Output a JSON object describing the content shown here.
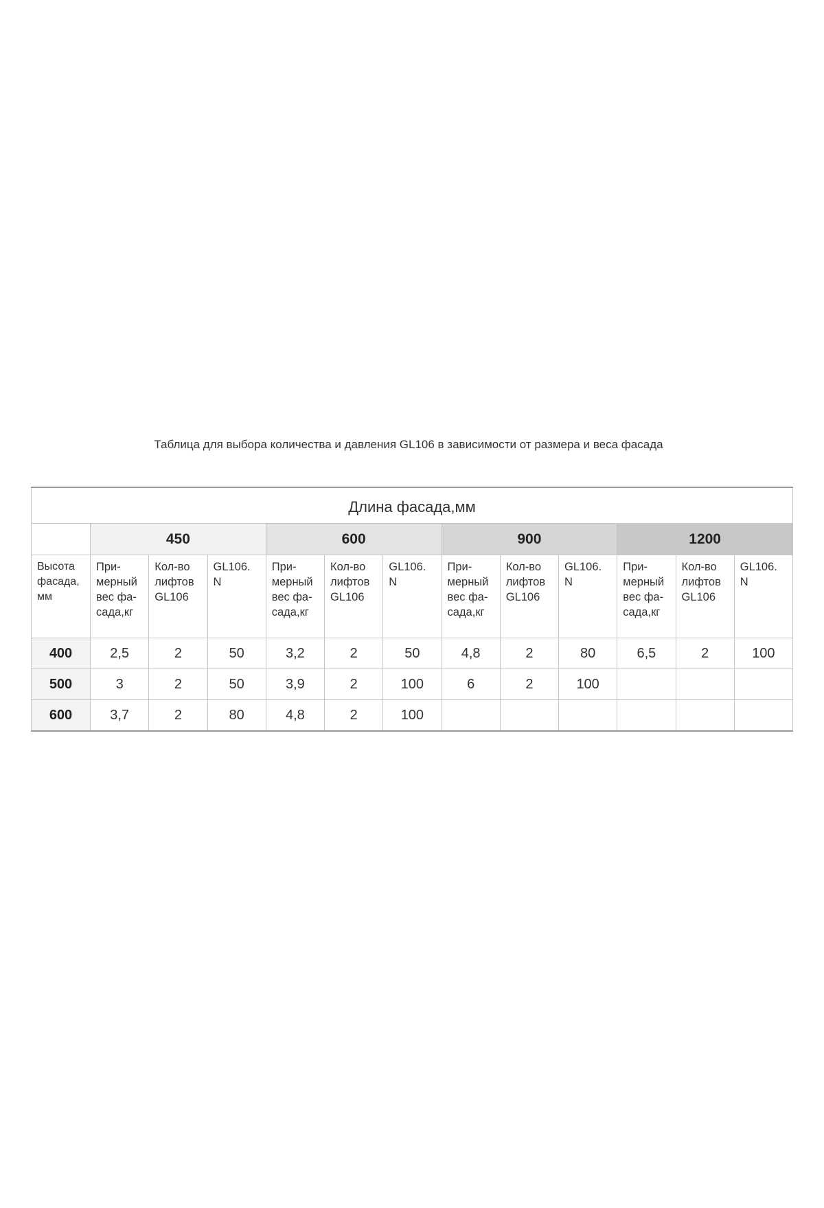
{
  "caption": "Таблица для выбора количества и давления GL106 в зависимости от размера и веса фасада",
  "table": {
    "title": "Длина фасада,мм",
    "groups": [
      "450",
      "600",
      "900",
      "1200"
    ],
    "group_colors": [
      "#f2f2f2",
      "#e3e3e3",
      "#d6d6d6",
      "#c8c8c8"
    ],
    "row_header_label": "Высота\nфасада,\nмм",
    "sub_headers": [
      "При-\nмерный\nвес фа-\nсада,кг",
      "Кол-во\nлифтов\nGL106",
      "GL106.\nN"
    ],
    "rows": [
      {
        "height": "400",
        "cells": [
          "2,5",
          "2",
          "50",
          "3,2",
          "2",
          "50",
          "4,8",
          "2",
          "80",
          "6,5",
          "2",
          "100"
        ]
      },
      {
        "height": "500",
        "cells": [
          "3",
          "2",
          "50",
          "3,9",
          "2",
          "100",
          "6",
          "2",
          "100",
          "",
          "",
          ""
        ]
      },
      {
        "height": "600",
        "cells": [
          "3,7",
          "2",
          "80",
          "4,8",
          "2",
          "100",
          "",
          "",
          "",
          "",
          "",
          ""
        ]
      }
    ]
  }
}
